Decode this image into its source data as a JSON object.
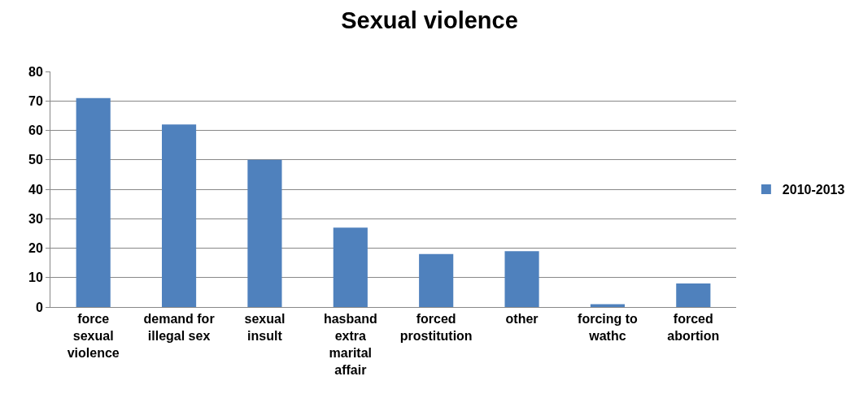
{
  "chart_data": {
    "type": "bar",
    "title": "Sexual violence",
    "categories": [
      "force sexual violence",
      "demand for illegal sex",
      "sexual insult",
      "hasband extra marital affair",
      "forced prostitution",
      "other",
      "forcing to wathc",
      "forced abortion"
    ],
    "series": [
      {
        "name": "2010-2013",
        "color": "#4f81bd",
        "values": [
          71,
          62,
          50,
          27,
          18,
          19,
          1,
          8
        ]
      }
    ],
    "ylim": [
      0,
      80
    ],
    "yticks": [
      0,
      10,
      20,
      30,
      40,
      50,
      60,
      70,
      80
    ],
    "grid": "y",
    "legend": "right"
  }
}
